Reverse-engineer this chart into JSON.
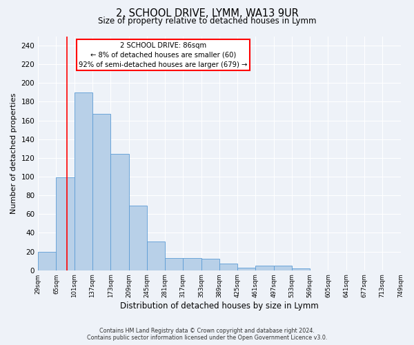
{
  "title": "2, SCHOOL DRIVE, LYMM, WA13 9UR",
  "subtitle": "Size of property relative to detached houses in Lymm",
  "xlabel": "Distribution of detached houses by size in Lymm",
  "ylabel": "Number of detached properties",
  "bar_values": [
    20,
    99,
    190,
    167,
    124,
    69,
    31,
    13,
    13,
    12,
    7,
    3,
    5,
    5,
    2,
    0,
    0,
    0,
    0,
    0
  ],
  "bin_edges": [
    29,
    65,
    101,
    137,
    173,
    209,
    245,
    281,
    317,
    353,
    389,
    425,
    461,
    497,
    533,
    569,
    605,
    641,
    677,
    713,
    749
  ],
  "tick_labels": [
    "29sqm",
    "65sqm",
    "101sqm",
    "137sqm",
    "173sqm",
    "209sqm",
    "245sqm",
    "281sqm",
    "317sqm",
    "353sqm",
    "389sqm",
    "425sqm",
    "461sqm",
    "497sqm",
    "533sqm",
    "569sqm",
    "605sqm",
    "641sqm",
    "677sqm",
    "713sqm",
    "749sqm"
  ],
  "bar_color": "#b8d0e8",
  "bar_edge_color": "#5b9bd5",
  "property_size": 86,
  "property_line_color": "red",
  "annotation_line1": "2 SCHOOL DRIVE: 86sqm",
  "annotation_line2": "← 8% of detached houses are smaller (60)",
  "annotation_line3": "92% of semi-detached houses are larger (679) →",
  "annotation_box_color": "red",
  "ylim": [
    0,
    250
  ],
  "yticks": [
    0,
    20,
    40,
    60,
    80,
    100,
    120,
    140,
    160,
    180,
    200,
    220,
    240
  ],
  "footer_line1": "Contains HM Land Registry data © Crown copyright and database right 2024.",
  "footer_line2": "Contains public sector information licensed under the Open Government Licence v3.0.",
  "bg_color": "#eef2f8",
  "plot_bg_color": "#eef2f8"
}
